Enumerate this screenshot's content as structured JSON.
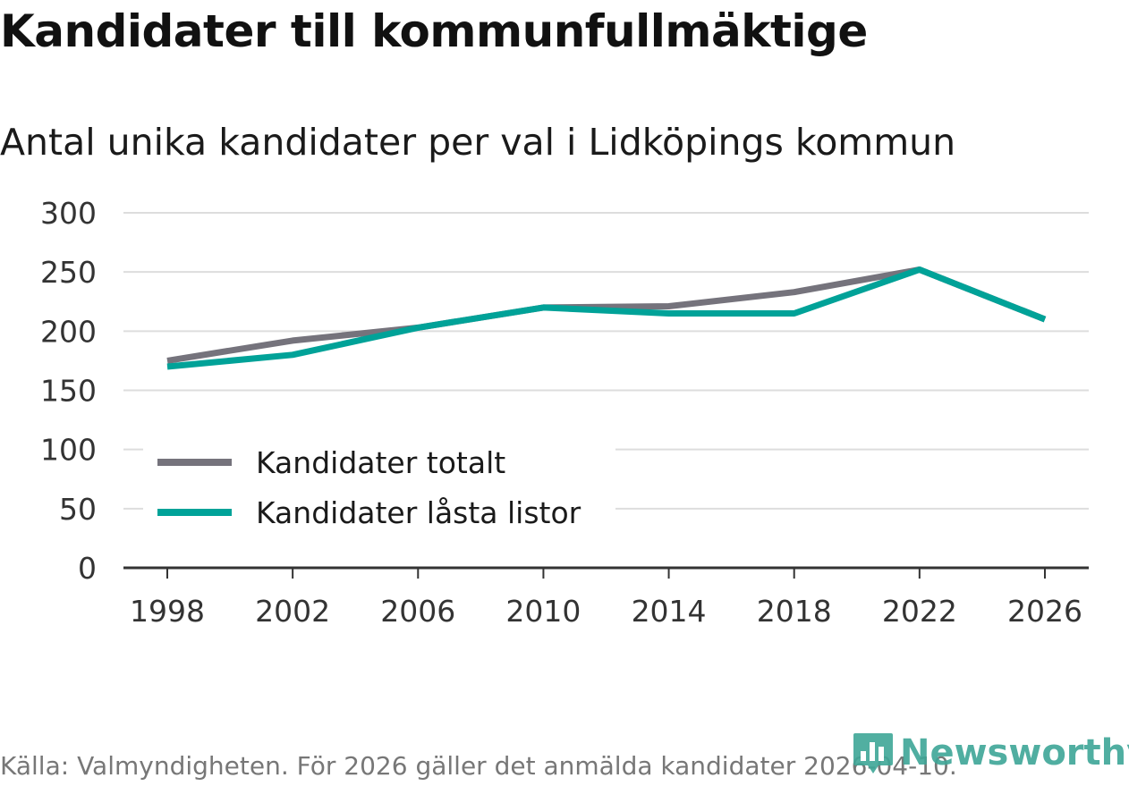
{
  "header": {
    "title": "Kandidater till kommunfullmäktige",
    "subtitle": "Antal unika kandidater per val i Lidköpings kommun"
  },
  "footer": {
    "source": "Källa: Valmyndigheten. För 2026 gäller det anmälda kandidater 2026-04-10.",
    "brand": "Newsworthy"
  },
  "icons": {
    "brand_logo": "bar-chart-icon"
  },
  "colors": {
    "grid": "#dddddd",
    "axis": "#333333",
    "series_total": "#75737c",
    "series_locked": "#00a298",
    "brand": "#3ea697"
  },
  "chart_data": {
    "type": "line",
    "title": "Kandidater till kommunfullmäktige",
    "subtitle": "Antal unika kandidater per val i Lidköpings kommun",
    "xlabel": "",
    "ylabel": "",
    "x": [
      "1998",
      "2002",
      "2006",
      "2010",
      "2014",
      "2018",
      "2022",
      "2026"
    ],
    "ylim": [
      0,
      300
    ],
    "yticks": [
      0,
      50,
      100,
      150,
      200,
      250,
      300
    ],
    "grid": true,
    "legend_position": "bottom-left",
    "series": [
      {
        "name": "Kandidater totalt",
        "color": "#75737c",
        "values": [
          175,
          192,
          203,
          220,
          221,
          233,
          252,
          210
        ]
      },
      {
        "name": "Kandidater låsta listor",
        "color": "#00a298",
        "values": [
          170,
          180,
          203,
          220,
          215,
          215,
          252,
          210
        ]
      }
    ]
  }
}
